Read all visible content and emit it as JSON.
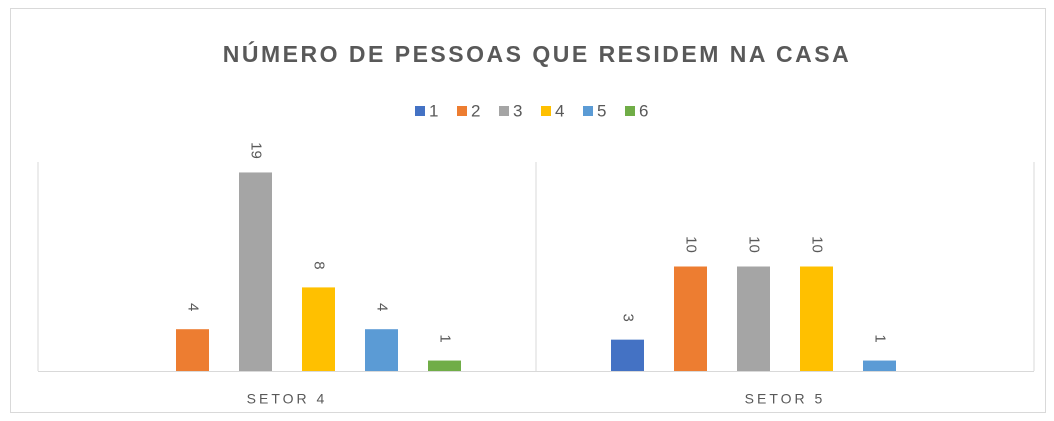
{
  "chart_data": {
    "type": "bar",
    "title": "NÚMERO DE PESSOAS QUE RESIDEM NA CASA",
    "categories": [
      "SETOR 4",
      "SETOR 5"
    ],
    "series": [
      {
        "name": "1",
        "color": "#4472c4",
        "values": [
          null,
          3
        ]
      },
      {
        "name": "2",
        "color": "#ed7d31",
        "values": [
          4,
          10
        ]
      },
      {
        "name": "3",
        "color": "#a5a5a5",
        "values": [
          19,
          10
        ]
      },
      {
        "name": "4",
        "color": "#ffc000",
        "values": [
          8,
          10
        ]
      },
      {
        "name": "5",
        "color": "#5b9bd5",
        "values": [
          4,
          1
        ]
      },
      {
        "name": "6",
        "color": "#70ad47",
        "values": [
          1,
          null
        ]
      }
    ],
    "ylim": [
      0,
      20
    ],
    "legend": "top"
  }
}
